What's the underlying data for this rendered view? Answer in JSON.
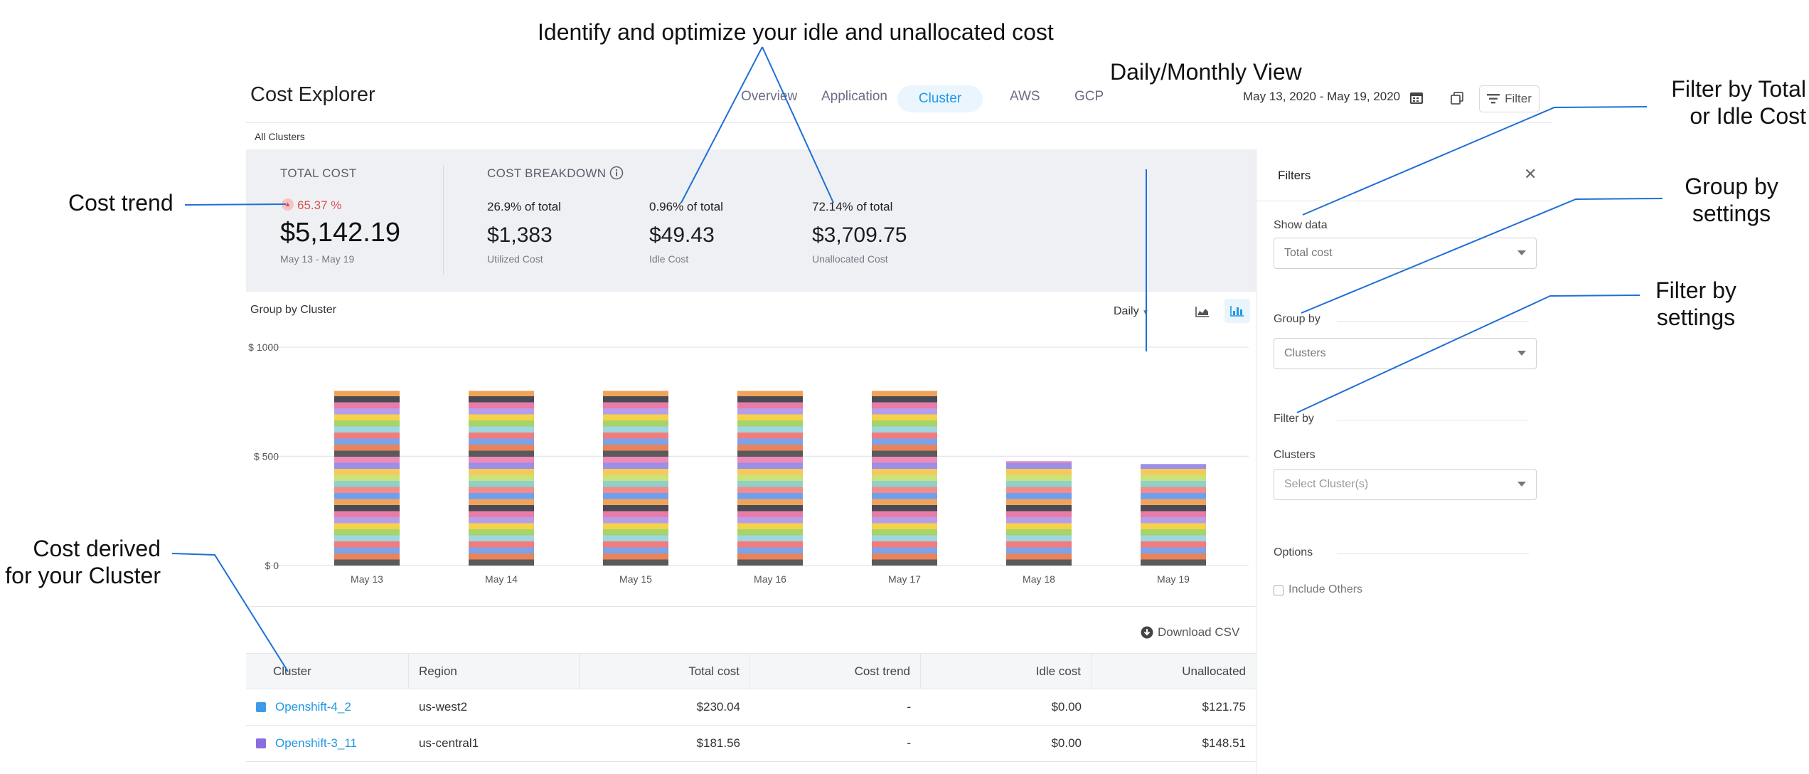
{
  "annotations": {
    "idle": "Identify and optimize your idle and unallocated cost",
    "daily_monthly": "Daily/Monthly View",
    "filter_total": [
      "Filter by Total",
      "or Idle Cost"
    ],
    "group_by": [
      "Group by",
      "settings"
    ],
    "filter_by": [
      "Filter by",
      "settings"
    ],
    "cost_trend": "Cost trend",
    "cost_derived": [
      "Cost derived",
      "for your Cluster"
    ]
  },
  "header": {
    "title": "Cost Explorer",
    "tabs": [
      {
        "label": "Overview",
        "active": false
      },
      {
        "label": "Application",
        "active": false
      },
      {
        "label": "Cluster",
        "active": true
      },
      {
        "label": "AWS",
        "active": false
      },
      {
        "label": "GCP",
        "active": false
      }
    ],
    "date_range": "May 13, 2020 - May 19, 2020",
    "filter_label": "Filter"
  },
  "scope": "All Clusters",
  "summary": {
    "total_cost_label": "TOTAL COST",
    "trend": "65.37 %",
    "total_cost": "$5,142.19",
    "period": "May 13 - May 19",
    "breakdown_label": "COST BREAKDOWN",
    "items": [
      {
        "pct": "26.9% of total",
        "value": "$1,383",
        "label": "Utilized Cost"
      },
      {
        "pct": "0.96% of total",
        "value": "$49.43",
        "label": "Idle Cost"
      },
      {
        "pct": "72.14% of total",
        "value": "$3,709.75",
        "label": "Unallocated Cost"
      }
    ]
  },
  "chart_header": {
    "title": "Group by Cluster",
    "view": "Daily"
  },
  "chart_data": {
    "type": "bar",
    "stacked": true,
    "categories": [
      "May 13",
      "May 14",
      "May 15",
      "May 16",
      "May 17",
      "May 18",
      "May 19"
    ],
    "values": [
      800,
      800,
      800,
      800,
      800,
      478,
      465
    ],
    "ytick_labels": [
      "$ 0",
      "$ 500",
      "$ 1000"
    ],
    "ylim": [
      0,
      1000
    ],
    "grid": true,
    "segment_colors": [
      "#5a5a5a",
      "#e8835a",
      "#7aa3ec",
      "#f47b7b",
      "#9ed6e0",
      "#a6d36a",
      "#f3d34a",
      "#b89ee8",
      "#e87ba7",
      "#4a4a55",
      "#f0a35a",
      "#6fa0f0",
      "#f28b8b",
      "#8fd0c8",
      "#c9e27a",
      "#f7c85a",
      "#9b8fe8",
      "#ec8ab8"
    ]
  },
  "download_label": "Download CSV",
  "table": {
    "headers": [
      "Cluster",
      "Region",
      "Total cost",
      "Cost trend",
      "Idle cost",
      "Unallocated"
    ],
    "rows": [
      {
        "color": "#3d9be9",
        "cluster": "Openshift-4_2",
        "region": "us-west2",
        "total": "$230.04",
        "trend": "-",
        "idle": "$0.00",
        "unallocated": "$121.75"
      },
      {
        "color": "#8a6de0",
        "cluster": "Openshift-3_11",
        "region": "us-central1",
        "total": "$181.56",
        "trend": "-",
        "idle": "$0.00",
        "unallocated": "$148.51"
      }
    ]
  },
  "filters": {
    "title": "Filters",
    "show_data_label": "Show data",
    "show_data_value": "Total cost",
    "group_by_label": "Group by",
    "group_by_value": "Clusters",
    "filter_by_label": "Filter by",
    "clusters_label": "Clusters",
    "clusters_placeholder": "Select Cluster(s)",
    "options_label": "Options",
    "include_others": "Include Others"
  }
}
